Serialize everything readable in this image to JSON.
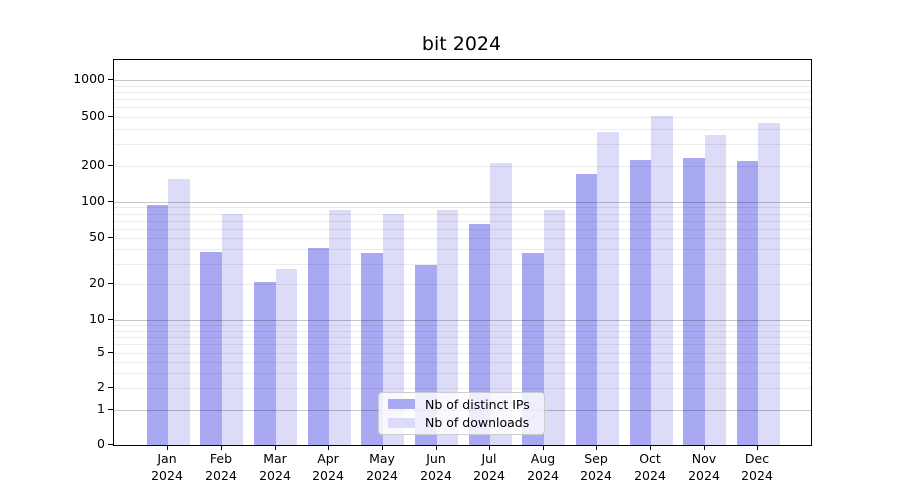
{
  "title": "bit 2024",
  "chart_data": {
    "type": "bar",
    "title": "bit 2024",
    "categories": [
      "Jan 2024",
      "Feb 2024",
      "Mar 2024",
      "Apr 2024",
      "May 2024",
      "Jun 2024",
      "Jul 2024",
      "Aug 2024",
      "Sep 2024",
      "Oct 2024",
      "Nov 2024",
      "Dec 2024"
    ],
    "series": [
      {
        "name": "Nb of distinct IPs",
        "color": "#a9a9f3",
        "values": [
          95,
          38,
          21,
          41,
          37,
          29,
          65,
          37,
          172,
          225,
          232,
          220
        ]
      },
      {
        "name": "Nb of downloads",
        "color": "#dcdcf9",
        "values": [
          155,
          79,
          27,
          86,
          79,
          86,
          210,
          86,
          380,
          510,
          360,
          450
        ]
      }
    ],
    "yticks": [
      0,
      1,
      2,
      5,
      10,
      20,
      50,
      100,
      200,
      500,
      1000
    ],
    "scale": "symlog",
    "ylim": [
      0,
      1450
    ],
    "xlabel": "",
    "ylabel": "",
    "grid": "horizontal",
    "legend_position": "lower center"
  }
}
